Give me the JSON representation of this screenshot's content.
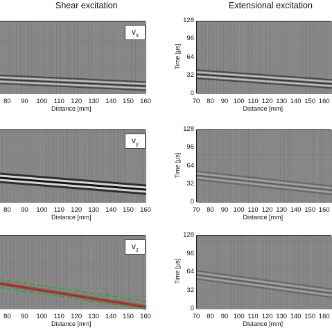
{
  "columns": {
    "left_title": "Shear excitation",
    "right_title": "Extensional excitation"
  },
  "panel_labels": [
    {
      "main": "v",
      "sub": "x"
    },
    {
      "main": "v",
      "sub": "y"
    },
    {
      "main": "v",
      "sub": "z"
    }
  ],
  "x_axis": {
    "label": "Distance [mm]",
    "left_ticks": [
      "80",
      "90",
      "100",
      "110",
      "120",
      "130",
      "140",
      "150",
      "160"
    ],
    "right_ticks": [
      "70",
      "80",
      "90",
      "100",
      "110",
      "120",
      "130",
      "140",
      "150",
      "160"
    ]
  },
  "y_axis": {
    "label": "Time [μs]",
    "ticks": [
      "128",
      "96",
      "64",
      "32",
      "0"
    ]
  },
  "colors": {
    "background_gray": "#8a8a8a",
    "fit_line": "#e01010",
    "bound_lines": "#2ea82e"
  },
  "chart_data": [
    {
      "type": "heatmap",
      "panel": "shear-vx",
      "xlabel": "Distance [mm]",
      "xlim": [
        75,
        160
      ],
      "ylim": [
        0,
        128
      ],
      "wavefront_time_us": [
        [
          75,
          26
        ],
        [
          160,
          14
        ]
      ],
      "amplitude": "medium"
    },
    {
      "type": "heatmap",
      "panel": "shear-vy",
      "xlabel": "Distance [mm]",
      "xlim": [
        75,
        160
      ],
      "ylim": [
        0,
        128
      ],
      "wavefront_time_us": [
        [
          75,
          44
        ],
        [
          160,
          23
        ]
      ],
      "amplitude": "strong"
    },
    {
      "type": "heatmap",
      "panel": "shear-vz",
      "xlabel": "Distance [mm]",
      "xlim": [
        75,
        160
      ],
      "ylim": [
        0,
        128
      ],
      "overlay_lines": [
        {
          "style": "solid",
          "color": "red",
          "points": [
            [
              75,
              45
            ],
            [
              160,
              4
            ]
          ]
        },
        {
          "style": "dashed",
          "color": "green",
          "points": [
            [
              75,
              52
            ],
            [
              160,
              14
            ]
          ]
        },
        {
          "style": "dashed",
          "color": "green",
          "points": [
            [
              75,
              38
            ],
            [
              160,
              0
            ]
          ]
        }
      ]
    },
    {
      "type": "heatmap",
      "panel": "ext-vx",
      "xlabel": "Distance [mm]",
      "ylabel": "Time [μs]",
      "xlim": [
        70,
        165
      ],
      "ylim": [
        0,
        128
      ],
      "wavefront_time_us": [
        [
          70,
          35
        ],
        [
          165,
          18
        ]
      ],
      "amplitude": "medium"
    },
    {
      "type": "heatmap",
      "panel": "ext-vy",
      "xlabel": "Distance [mm]",
      "ylabel": "Time [μs]",
      "xlim": [
        70,
        165
      ],
      "ylim": [
        0,
        128
      ],
      "wavefront_time_us": [
        [
          70,
          48
        ],
        [
          165,
          22
        ]
      ],
      "amplitude": "weak"
    },
    {
      "type": "heatmap",
      "panel": "ext-vz",
      "xlabel": "Distance [mm]",
      "ylabel": "Time [μs]",
      "xlim": [
        70,
        165
      ],
      "ylim": [
        0,
        128
      ],
      "wavefront_time_us": [
        [
          70,
          60
        ],
        [
          165,
          28
        ]
      ],
      "amplitude": "weak"
    }
  ]
}
